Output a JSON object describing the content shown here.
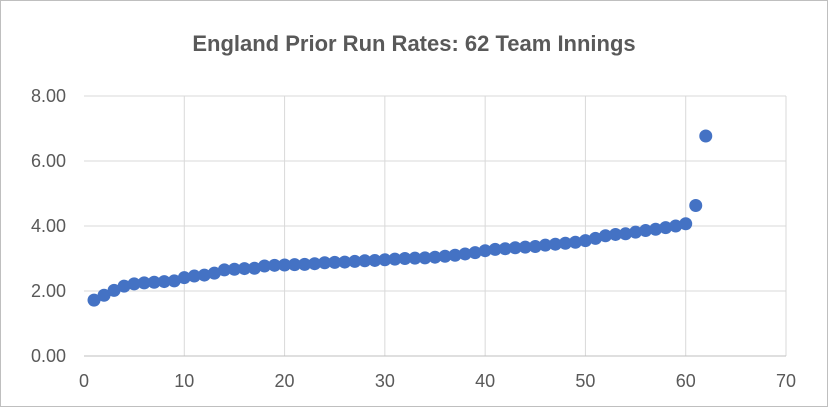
{
  "chart_data": {
    "type": "scatter",
    "title": "England Prior Run Rates: 62 Team Innings",
    "xlabel": "",
    "ylabel": "",
    "xlim": [
      0,
      70
    ],
    "ylim": [
      0,
      8
    ],
    "x_ticks": [
      "0",
      "10",
      "20",
      "30",
      "40",
      "50",
      "60",
      "70"
    ],
    "y_ticks": [
      "0.00",
      "2.00",
      "4.00",
      "6.00",
      "8.00"
    ],
    "grid": true,
    "legend": "none",
    "marker_color": "#4472c4",
    "series": [
      {
        "x": [
          1,
          2,
          3,
          4,
          5,
          6,
          7,
          8,
          9,
          10,
          11,
          12,
          13,
          14,
          15,
          16,
          17,
          18,
          19,
          20,
          21,
          22,
          23,
          24,
          25,
          26,
          27,
          28,
          29,
          30,
          31,
          32,
          33,
          34,
          35,
          36,
          37,
          38,
          39,
          40,
          41,
          42,
          43,
          44,
          45,
          46,
          47,
          48,
          49,
          50,
          51,
          52,
          53,
          54,
          55,
          56,
          57,
          58,
          59,
          60,
          61,
          62
        ],
        "y": [
          1.72,
          1.87,
          2.02,
          2.15,
          2.22,
          2.25,
          2.27,
          2.29,
          2.31,
          2.41,
          2.46,
          2.49,
          2.55,
          2.65,
          2.67,
          2.69,
          2.7,
          2.77,
          2.79,
          2.8,
          2.81,
          2.82,
          2.84,
          2.87,
          2.88,
          2.89,
          2.91,
          2.93,
          2.94,
          2.96,
          2.98,
          3.0,
          3.01,
          3.02,
          3.04,
          3.07,
          3.1,
          3.14,
          3.18,
          3.24,
          3.28,
          3.3,
          3.33,
          3.35,
          3.37,
          3.41,
          3.44,
          3.47,
          3.5,
          3.55,
          3.62,
          3.7,
          3.74,
          3.76,
          3.81,
          3.86,
          3.9,
          3.95,
          4.0,
          4.07,
          4.63,
          6.77
        ]
      }
    ]
  }
}
